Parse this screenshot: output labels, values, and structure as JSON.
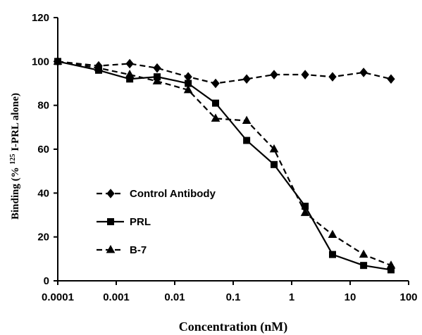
{
  "chart_data": {
    "type": "line",
    "xlabel": "Concentration (nM)",
    "ylabel_parts": {
      "prefix": "Binding (% ",
      "superscript": "125",
      "suffix": "I-PRL  alone)"
    },
    "x_scale": "log",
    "xlim": [
      0.0001,
      100
    ],
    "ylim": [
      0,
      120
    ],
    "x_ticks": [
      0.0001,
      0.001,
      0.01,
      0.1,
      1,
      10,
      100
    ],
    "x_tick_labels": [
      "0.0001",
      "0.001",
      "0.01",
      "0.1",
      "1",
      "10",
      "100"
    ],
    "y_ticks": [
      0,
      20,
      40,
      60,
      80,
      100,
      120
    ],
    "y_tick_labels": [
      "0",
      "20",
      "40",
      "60",
      "80",
      "100",
      "120"
    ],
    "grid": false,
    "legend_position": "bottom-left",
    "series": [
      {
        "name": "Control Antibody",
        "line_style": "dashed",
        "marker": "diamond",
        "color": "#000000",
        "x": [
          0.0001,
          0.0005,
          0.0017,
          0.005,
          0.017,
          0.05,
          0.17,
          0.5,
          1.7,
          5,
          17,
          50
        ],
        "y": [
          100,
          98,
          99,
          97,
          93,
          90,
          92,
          94,
          94,
          93,
          95,
          92
        ]
      },
      {
        "name": "PRL",
        "line_style": "solid",
        "marker": "square",
        "color": "#000000",
        "x": [
          0.0001,
          0.0005,
          0.0017,
          0.005,
          0.017,
          0.05,
          0.17,
          0.5,
          1.7,
          5,
          17,
          50
        ],
        "y": [
          100,
          96,
          92,
          93,
          90,
          81,
          64,
          53,
          34,
          12,
          7,
          5
        ]
      },
      {
        "name": "B-7",
        "line_style": "dashed",
        "marker": "triangle",
        "color": "#000000",
        "x": [
          0.0001,
          0.0005,
          0.0017,
          0.005,
          0.017,
          0.05,
          0.17,
          0.5,
          1.7,
          5,
          17,
          50
        ],
        "y": [
          100,
          97,
          94,
          91,
          87,
          74,
          73,
          60,
          31,
          21,
          12,
          7
        ]
      }
    ]
  }
}
